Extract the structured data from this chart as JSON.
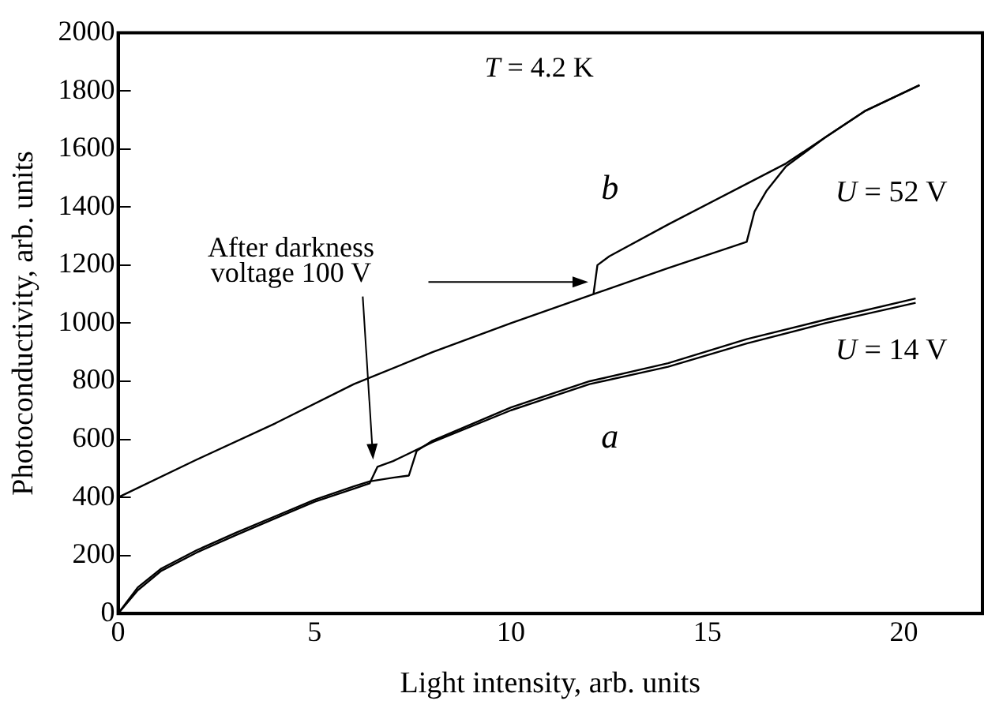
{
  "chart_data": {
    "type": "line",
    "xlabel": "Light intensity, arb. units",
    "ylabel": "Photoconductivity, arb. units",
    "xlim": [
      0,
      22
    ],
    "xticks": [
      0,
      5,
      10,
      15,
      20
    ],
    "ylim": [
      0,
      2000
    ],
    "yticks": [
      0,
      200,
      400,
      600,
      800,
      1000,
      1200,
      1400,
      1600,
      1800,
      2000
    ],
    "grid": false,
    "legend": false,
    "marker": "none",
    "line_style": "solid",
    "series": [
      {
        "color": "#000000",
        "x": [
          0,
          0.5,
          1.1,
          2,
          3,
          4,
          5,
          6,
          6.4,
          6.6,
          7,
          8,
          10,
          12,
          14,
          16,
          18,
          20.3
        ],
        "values": [
          0,
          80,
          147,
          210,
          270,
          328,
          385,
          430,
          448,
          505,
          525,
          590,
          700,
          790,
          850,
          930,
          1000,
          1070
        ]
      },
      {
        "color": "#000000",
        "x": [
          0,
          0.5,
          1.1,
          2,
          3,
          4,
          5,
          6,
          6.4,
          7,
          7.4,
          7.6,
          8,
          10,
          12,
          14,
          16,
          18,
          20.3
        ],
        "values": [
          0,
          90,
          155,
          218,
          278,
          335,
          392,
          438,
          455,
          468,
          475,
          560,
          595,
          710,
          800,
          862,
          945,
          1012,
          1085
        ]
      },
      {
        "color": "#000000",
        "x": [
          0,
          2,
          4,
          6,
          8,
          10,
          12,
          12.1,
          14,
          16,
          16.2,
          16.5,
          17,
          18,
          19,
          20.4
        ],
        "values": [
          400,
          530,
          655,
          790,
          900,
          1000,
          1095,
          1100,
          1190,
          1280,
          1385,
          1455,
          1540,
          1640,
          1730,
          1820
        ]
      },
      {
        "color": "#000000",
        "x": [
          12.1,
          12.2,
          12.5,
          14,
          16,
          17,
          18,
          19,
          20.4
        ],
        "values": [
          1100,
          1200,
          1230,
          1340,
          1480,
          1550,
          1640,
          1730,
          1820
        ]
      }
    ],
    "annotations": [
      "T = 4.2 K",
      "b",
      "a",
      "U = 52 V",
      "U = 14 V",
      "After darkness\nvoltage 100 V"
    ]
  }
}
